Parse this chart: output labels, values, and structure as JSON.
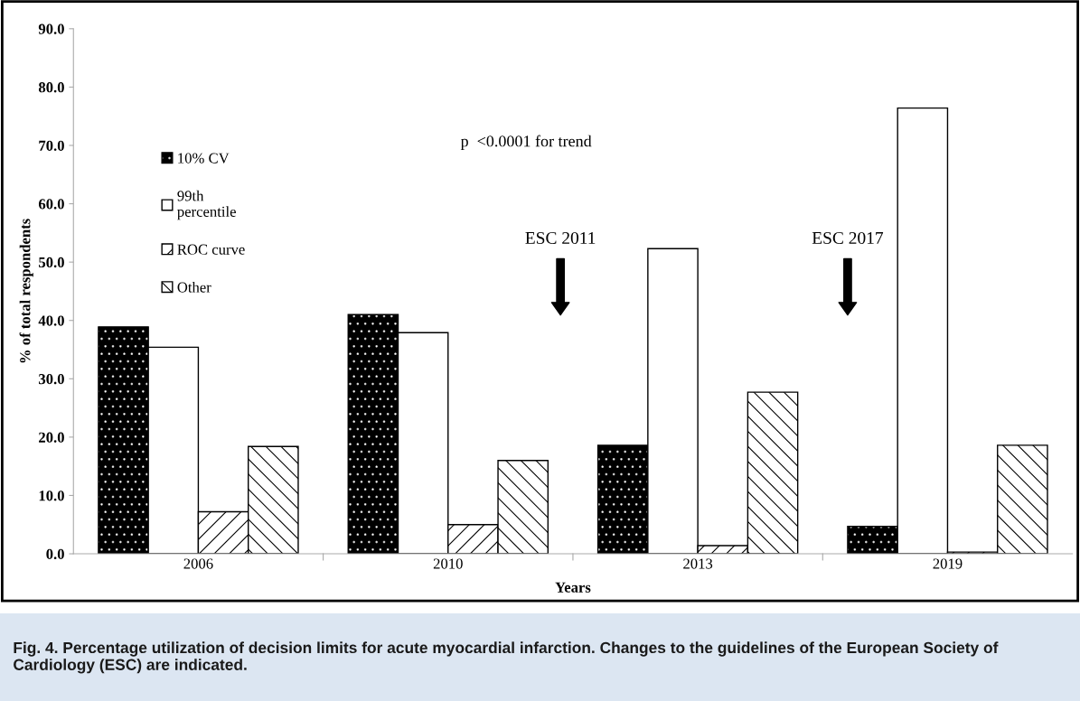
{
  "chart_data": {
    "type": "bar",
    "categories": [
      "2006",
      "2010",
      "2013",
      "2019"
    ],
    "xlabel": "Years",
    "ylabel": "% of total respondents",
    "series": [
      {
        "name": "10% CV",
        "color": "#000000",
        "values": [
          38.9,
          41.0,
          18.6,
          4.7
        ]
      },
      {
        "name": "99th\npercentile",
        "color": "#ffffff",
        "values": [
          35.4,
          37.9,
          52.3,
          76.4
        ]
      },
      {
        "name": "ROC curve",
        "color": "#000000",
        "values": [
          7.2,
          5.0,
          1.4,
          0.3
        ]
      },
      {
        "name": "Other",
        "color": "#000000",
        "values": [
          18.4,
          16.0,
          27.7,
          18.6
        ]
      }
    ],
    "ylim": [
      0,
      90
    ],
    "yticks": [
      {
        "value": 0,
        "label": "0.0"
      },
      {
        "value": 10,
        "label": "10.0"
      },
      {
        "value": 20,
        "label": "20.0"
      },
      {
        "value": 30,
        "label": "30.0"
      },
      {
        "value": 40,
        "label": "40.0"
      },
      {
        "value": 50,
        "label": "50.0"
      },
      {
        "value": 60,
        "label": "60.0"
      },
      {
        "value": 70,
        "label": "70.0"
      },
      {
        "value": 80,
        "label": "80.0"
      },
      {
        "value": 90,
        "label": "90.0"
      }
    ],
    "legend": "upper left",
    "annotations": [
      "p  <0.0001 for trend",
      "ESC 2011",
      "ESC 2017",
      "Fig. 4. Percentage utilization of decision limits for acute myocardial infarction. Changes to the guidelines of the European Society of Cardiology (ESC) are indicated."
    ]
  }
}
